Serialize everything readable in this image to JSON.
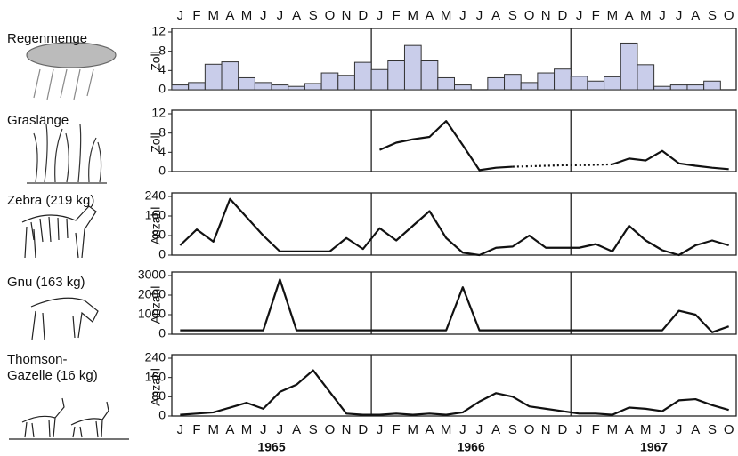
{
  "chart_data": [
    {
      "type": "bar",
      "title": [
        "Regenmenge"
      ],
      "y_label": "Zoll",
      "ylim": [
        0,
        12
      ],
      "yticks": [
        0,
        4,
        8,
        12
      ],
      "color": "#c9cdea",
      "categories": [
        "J",
        "F",
        "M",
        "A",
        "M",
        "J",
        "J",
        "A",
        "S",
        "O",
        "N",
        "D",
        "J",
        "F",
        "M",
        "A",
        "M",
        "J",
        "J",
        "A",
        "S",
        "O",
        "N",
        "D",
        "J",
        "F",
        "M",
        "A",
        "M",
        "J",
        "J",
        "A",
        "S",
        "O"
      ],
      "values": [
        1,
        1.5,
        5.3,
        5.8,
        2.5,
        1.5,
        1,
        0.7,
        1.3,
        3.5,
        3,
        5.7,
        4.2,
        6,
        9.2,
        6,
        2.5,
        1,
        null,
        2.5,
        3.2,
        1.5,
        3.5,
        4.3,
        2.8,
        1.8,
        2.7,
        9.7,
        5.2,
        0.7,
        1,
        1,
        1.8,
        null
      ]
    },
    {
      "type": "line",
      "title": [
        "Graslänge"
      ],
      "y_label": "Zoll",
      "ylim": [
        0,
        12
      ],
      "yticks": [
        0,
        4,
        8,
        12
      ],
      "series": [
        {
          "color": "#111111",
          "dashed": false,
          "values": [
            null,
            null,
            null,
            null,
            null,
            null,
            null,
            null,
            null,
            null,
            null,
            null,
            4.5,
            6,
            6.7,
            7.2,
            10.5,
            5.5,
            0.3,
            0.8,
            1.0,
            null,
            null,
            null,
            null,
            null,
            null,
            null,
            null,
            null,
            null,
            null,
            null,
            null
          ]
        },
        {
          "color": "#111111",
          "dashed": true,
          "values": [
            null,
            null,
            null,
            null,
            null,
            null,
            null,
            null,
            null,
            null,
            null,
            null,
            null,
            null,
            null,
            null,
            null,
            null,
            null,
            null,
            1.0,
            1.1,
            1.2,
            1.3,
            1.3,
            1.4,
            1.5,
            null,
            null,
            null,
            null,
            null,
            null,
            null
          ]
        },
        {
          "color": "#111111",
          "dashed": false,
          "values": [
            null,
            null,
            null,
            null,
            null,
            null,
            null,
            null,
            null,
            null,
            null,
            null,
            null,
            null,
            null,
            null,
            null,
            null,
            null,
            null,
            null,
            null,
            null,
            null,
            null,
            null,
            1.5,
            2.7,
            2.3,
            4.3,
            1.7,
            1.2,
            0.8,
            0.5
          ]
        }
      ]
    },
    {
      "type": "line",
      "title": [
        "Zebra (219 kg)"
      ],
      "y_label": "Anzahl",
      "ylim": [
        0,
        240
      ],
      "yticks": [
        0,
        80,
        160,
        240
      ],
      "series": [
        {
          "color": "#111111",
          "dashed": false,
          "values": [
            40,
            105,
            55,
            230,
            155,
            80,
            15,
            15,
            15,
            15,
            70,
            25,
            110,
            60,
            120,
            180,
            70,
            10,
            0,
            30,
            35,
            80,
            30,
            30,
            30,
            45,
            15,
            120,
            60,
            20,
            0,
            40,
            60,
            40
          ]
        }
      ]
    },
    {
      "type": "line",
      "title": [
        "Gnu (163 kg)"
      ],
      "y_label": "Anzahl",
      "ylim": [
        0,
        3000
      ],
      "yticks": [
        0,
        1000,
        2000,
        3000
      ],
      "series": [
        {
          "color": "#111111",
          "dashed": false,
          "values": [
            200,
            200,
            200,
            200,
            200,
            200,
            2800,
            200,
            200,
            200,
            200,
            200,
            200,
            200,
            200,
            200,
            200,
            2400,
            200,
            200,
            200,
            200,
            200,
            200,
            200,
            200,
            200,
            200,
            200,
            200,
            1200,
            1000,
            100,
            400
          ]
        }
      ]
    },
    {
      "type": "line",
      "title": [
        "Thomson-",
        "Gazelle (16 kg)"
      ],
      "y_label": "Anzahl",
      "ylim": [
        0,
        240
      ],
      "yticks": [
        0,
        80,
        160,
        240
      ],
      "categories": [
        "J",
        "F",
        "M",
        "A",
        "M",
        "J",
        "J",
        "A",
        "S",
        "O",
        "N",
        "D",
        "J",
        "F",
        "M",
        "A",
        "M",
        "J",
        "J",
        "A",
        "S",
        "O",
        "N",
        "D",
        "J",
        "F",
        "M",
        "A",
        "M",
        "J",
        "J",
        "A",
        "S",
        "O"
      ],
      "years": [
        "1965",
        "1966",
        "1967"
      ],
      "series": [
        {
          "color": "#111111",
          "dashed": false,
          "values": [
            5,
            10,
            15,
            35,
            55,
            30,
            100,
            130,
            190,
            100,
            10,
            5,
            5,
            10,
            5,
            10,
            5,
            15,
            60,
            95,
            80,
            40,
            30,
            20,
            10,
            10,
            5,
            35,
            30,
            20,
            65,
            70,
            45,
            25
          ]
        }
      ]
    }
  ]
}
